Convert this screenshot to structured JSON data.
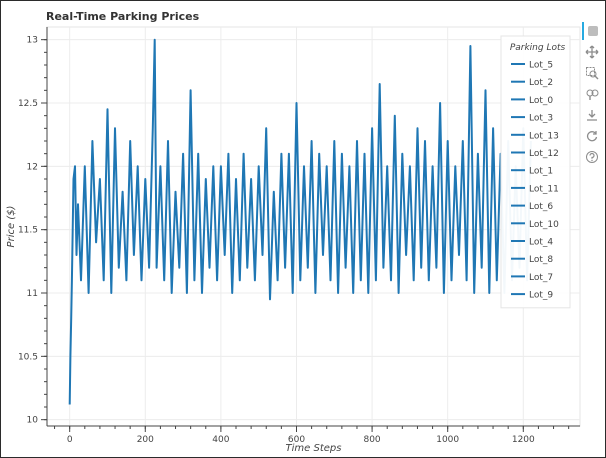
{
  "chart_data": {
    "type": "line",
    "title": "Real-Time Parking Prices",
    "xlabel": "Time Steps",
    "ylabel": "Price ($)",
    "xlim": [
      -60,
      1350
    ],
    "ylim": [
      9.95,
      13.1
    ],
    "x_ticks": [
      0,
      200,
      400,
      600,
      800,
      1000,
      1200
    ],
    "y_ticks": [
      10,
      10.5,
      11,
      11.5,
      12,
      12.5,
      13
    ],
    "grid": true,
    "legend": {
      "title": "Parking Lots",
      "placement": "top-right"
    },
    "color": "#1f77b4",
    "series": [
      {
        "name": "Lot_5",
        "x": [
          0,
          2,
          4,
          6,
          8,
          10,
          14,
          18,
          22,
          30,
          40,
          50,
          60,
          70,
          80,
          90,
          100,
          110,
          120,
          130,
          140,
          150,
          160,
          170,
          180,
          190,
          200,
          210,
          220,
          225,
          230,
          240,
          250,
          260,
          270,
          280,
          290,
          300,
          310,
          320,
          330,
          340,
          350,
          360,
          370,
          380,
          390,
          400,
          410,
          420,
          430,
          440,
          450,
          460,
          470,
          480,
          490,
          500,
          510,
          520,
          530,
          540,
          550,
          560,
          570,
          580,
          590,
          600,
          610,
          620,
          630,
          640,
          650,
          660,
          670,
          680,
          690,
          700,
          710,
          720,
          730,
          740,
          750,
          760,
          770,
          780,
          790,
          800,
          810,
          820,
          830,
          840,
          850,
          860,
          870,
          880,
          890,
          900,
          910,
          920,
          930,
          940,
          950,
          960,
          970,
          980,
          990,
          1000,
          1010,
          1020,
          1030,
          1040,
          1050,
          1060,
          1070,
          1080,
          1090,
          1100,
          1110,
          1120,
          1130,
          1140,
          1150,
          1160,
          1170,
          1180,
          1190,
          1200,
          1210,
          1220
        ],
        "y": [
          10.12,
          10.5,
          10.8,
          11.1,
          11.5,
          11.9,
          12.0,
          11.3,
          11.7,
          11.1,
          12.0,
          11.0,
          12.2,
          11.4,
          11.9,
          11.1,
          12.45,
          11.0,
          12.3,
          11.2,
          11.8,
          11.1,
          12.2,
          11.3,
          12.0,
          11.1,
          11.9,
          11.2,
          12.3,
          13.0,
          11.2,
          12.0,
          11.1,
          12.2,
          11.0,
          11.8,
          11.2,
          12.1,
          11.0,
          12.6,
          11.1,
          12.1,
          11.0,
          11.9,
          11.2,
          12.0,
          11.1,
          12.0,
          11.3,
          12.1,
          11.0,
          11.9,
          11.1,
          12.1,
          11.2,
          11.9,
          11.1,
          12.0,
          11.3,
          12.3,
          10.95,
          11.8,
          11.1,
          12.1,
          11.2,
          12.1,
          11.0,
          12.5,
          11.1,
          12.0,
          11.2,
          12.2,
          11.0,
          12.1,
          11.3,
          12.0,
          11.1,
          12.2,
          11.0,
          12.1,
          11.2,
          12.0,
          11.0,
          12.2,
          11.1,
          12.1,
          11.0,
          12.3,
          11.1,
          12.65,
          11.2,
          12.0,
          11.1,
          12.4,
          11.0,
          12.1,
          11.3,
          12.0,
          11.1,
          12.3,
          11.2,
          12.2,
          11.1,
          12.0,
          11.2,
          12.5,
          11.0,
          12.2,
          11.1,
          12.0,
          11.3,
          12.2,
          11.1,
          12.95,
          11.0,
          12.1,
          11.2,
          12.6,
          11.0,
          12.3,
          11.1,
          12.1,
          11.0,
          12.2,
          11.1,
          12.0,
          11.2,
          12.3,
          11.1,
          12.2
        ]
      },
      {
        "name": "Lot_2"
      },
      {
        "name": "Lot_0"
      },
      {
        "name": "Lot_3"
      },
      {
        "name": "Lot_13"
      },
      {
        "name": "Lot_12"
      },
      {
        "name": "Lot_1"
      },
      {
        "name": "Lot_11"
      },
      {
        "name": "Lot_6"
      },
      {
        "name": "Lot_10"
      },
      {
        "name": "Lot_4"
      },
      {
        "name": "Lot_8"
      },
      {
        "name": "Lot_7"
      },
      {
        "name": "Lot_9"
      }
    ]
  },
  "toolbar": {
    "icons": [
      "bokeh-logo-icon",
      "pan-icon",
      "box-zoom-icon",
      "wheel-zoom-icon",
      "save-icon",
      "reset-icon",
      "help-icon"
    ]
  }
}
